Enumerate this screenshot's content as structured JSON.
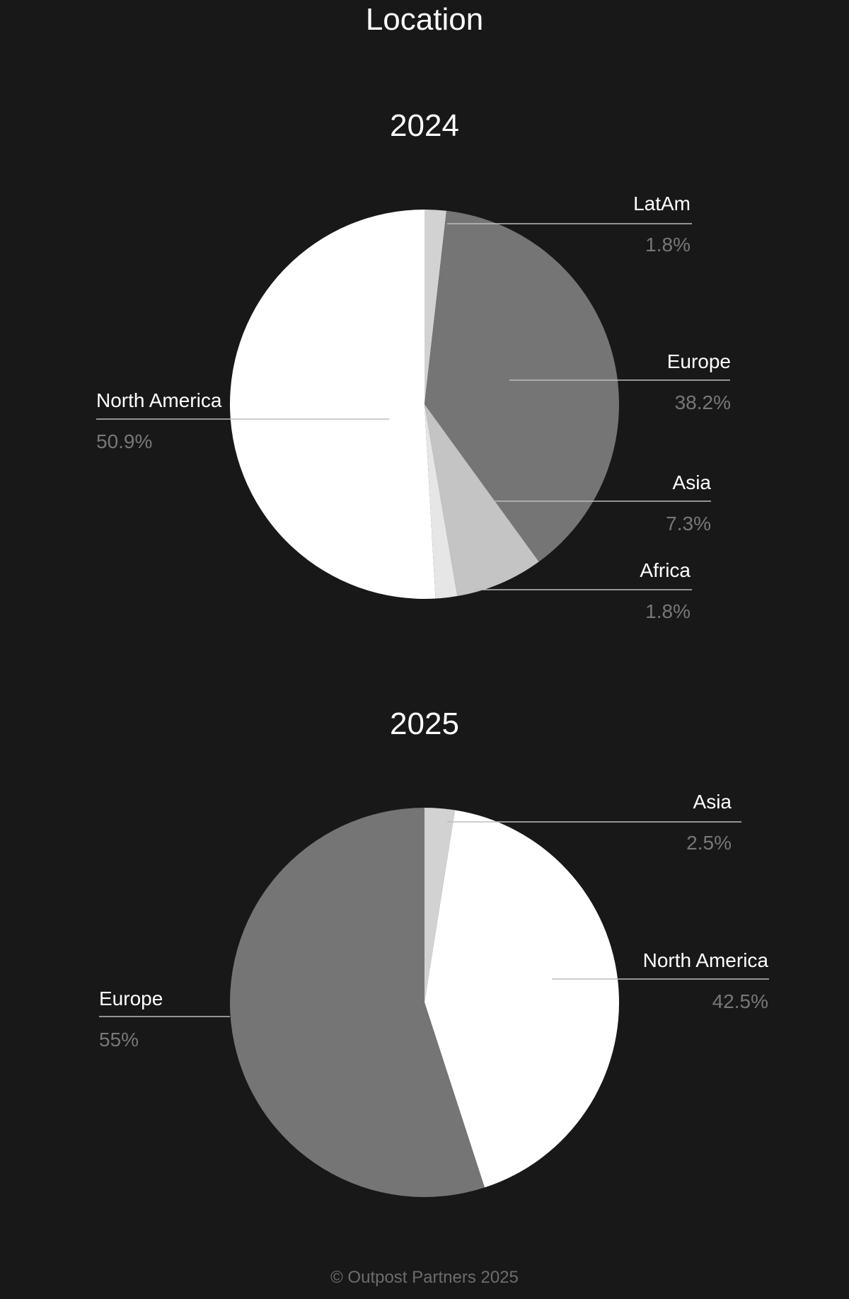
{
  "page": {
    "title": "Location",
    "footer": "© Outpost Partners 2025",
    "background": "#181818"
  },
  "chart_data": [
    {
      "type": "pie",
      "title": "2024",
      "slices": [
        {
          "name": "LatAm",
          "value": 1.8,
          "label": "1.8%",
          "color": "#d2d2d2"
        },
        {
          "name": "Europe",
          "value": 38.2,
          "label": "38.2%",
          "color": "#757575"
        },
        {
          "name": "Asia",
          "value": 7.3,
          "label": "7.3%",
          "color": "#c4c4c4"
        },
        {
          "name": "Africa",
          "value": 1.8,
          "label": "1.8%",
          "color": "#e6e6e6"
        },
        {
          "name": "North America",
          "value": 50.9,
          "label": "50.9%",
          "color": "#ffffff"
        }
      ],
      "start_angle": "top",
      "direction": "clockwise"
    },
    {
      "type": "pie",
      "title": "2025",
      "slices": [
        {
          "name": "Asia",
          "value": 2.5,
          "label": "2.5%",
          "color": "#d2d2d2"
        },
        {
          "name": "North America",
          "value": 42.5,
          "label": "42.5%",
          "color": "#ffffff"
        },
        {
          "name": "Europe",
          "value": 55,
          "label": "55%",
          "color": "#757575"
        }
      ],
      "start_angle": "top",
      "direction": "clockwise"
    }
  ]
}
